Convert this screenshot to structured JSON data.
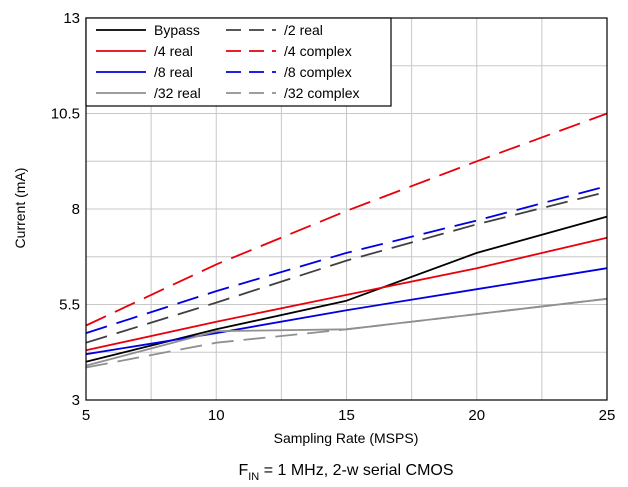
{
  "chart_data": {
    "type": "line",
    "xlabel": "Sampling Rate (MSPS)",
    "ylabel": "Current (mA)",
    "xlim": [
      5,
      25
    ],
    "ylim": [
      3,
      13
    ],
    "xticks": [
      5,
      10,
      15,
      20,
      25
    ],
    "yticks": [
      3,
      5.5,
      8,
      10.5,
      13
    ],
    "ytick_labels": [
      "3",
      "5.5",
      "8",
      "10.5",
      "13"
    ],
    "grid": true,
    "legend_position": "top-left",
    "caption": {
      "prefix": "F",
      "subscript": "IN",
      "suffix": " = 1 MHz, 2-w serial CMOS"
    },
    "colors": {
      "black": "#000000",
      "dark_gray": "#404040",
      "red": "#e8000b",
      "blue": "#0000e0",
      "gray": "#909090"
    },
    "series": [
      {
        "name": "Bypass",
        "color": "#000000",
        "dash": "solid",
        "x": [
          5,
          10,
          15,
          20,
          25
        ],
        "y": [
          4.0,
          4.85,
          5.6,
          6.85,
          7.8
        ]
      },
      {
        "name": "/2 real",
        "color": "#404040",
        "dash": "dashed",
        "x": [
          5,
          10,
          15,
          20,
          25
        ],
        "y": [
          4.5,
          5.55,
          6.65,
          7.6,
          8.45
        ]
      },
      {
        "name": "/4 real",
        "color": "#e8000b",
        "dash": "solid",
        "x": [
          5,
          10,
          15,
          20,
          25
        ],
        "y": [
          4.3,
          5.05,
          5.75,
          6.45,
          7.25
        ]
      },
      {
        "name": "/4 complex",
        "color": "#e8000b",
        "dash": "dashed",
        "x": [
          5,
          10,
          15,
          20,
          25
        ],
        "y": [
          4.95,
          6.55,
          7.95,
          9.25,
          10.5
        ]
      },
      {
        "name": "/8 real",
        "color": "#0000e0",
        "dash": "solid",
        "x": [
          5,
          10,
          15,
          20,
          25
        ],
        "y": [
          4.2,
          4.75,
          5.35,
          5.9,
          6.45
        ]
      },
      {
        "name": "/8 complex",
        "color": "#0000e0",
        "dash": "dashed",
        "x": [
          5,
          10,
          15,
          20,
          25
        ],
        "y": [
          4.75,
          5.85,
          6.85,
          7.7,
          8.6
        ]
      },
      {
        "name": "/32 real",
        "color": "#909090",
        "dash": "solid",
        "x": [
          5,
          10,
          15,
          20,
          25
        ],
        "y": [
          3.9,
          4.8,
          4.85,
          5.25,
          5.65
        ]
      },
      {
        "name": "/32 complex",
        "color": "#909090",
        "dash": "dashed",
        "x": [
          5,
          10,
          15,
          20,
          25
        ],
        "y": [
          3.85,
          4.5,
          4.85,
          5.25,
          5.65
        ]
      }
    ]
  }
}
